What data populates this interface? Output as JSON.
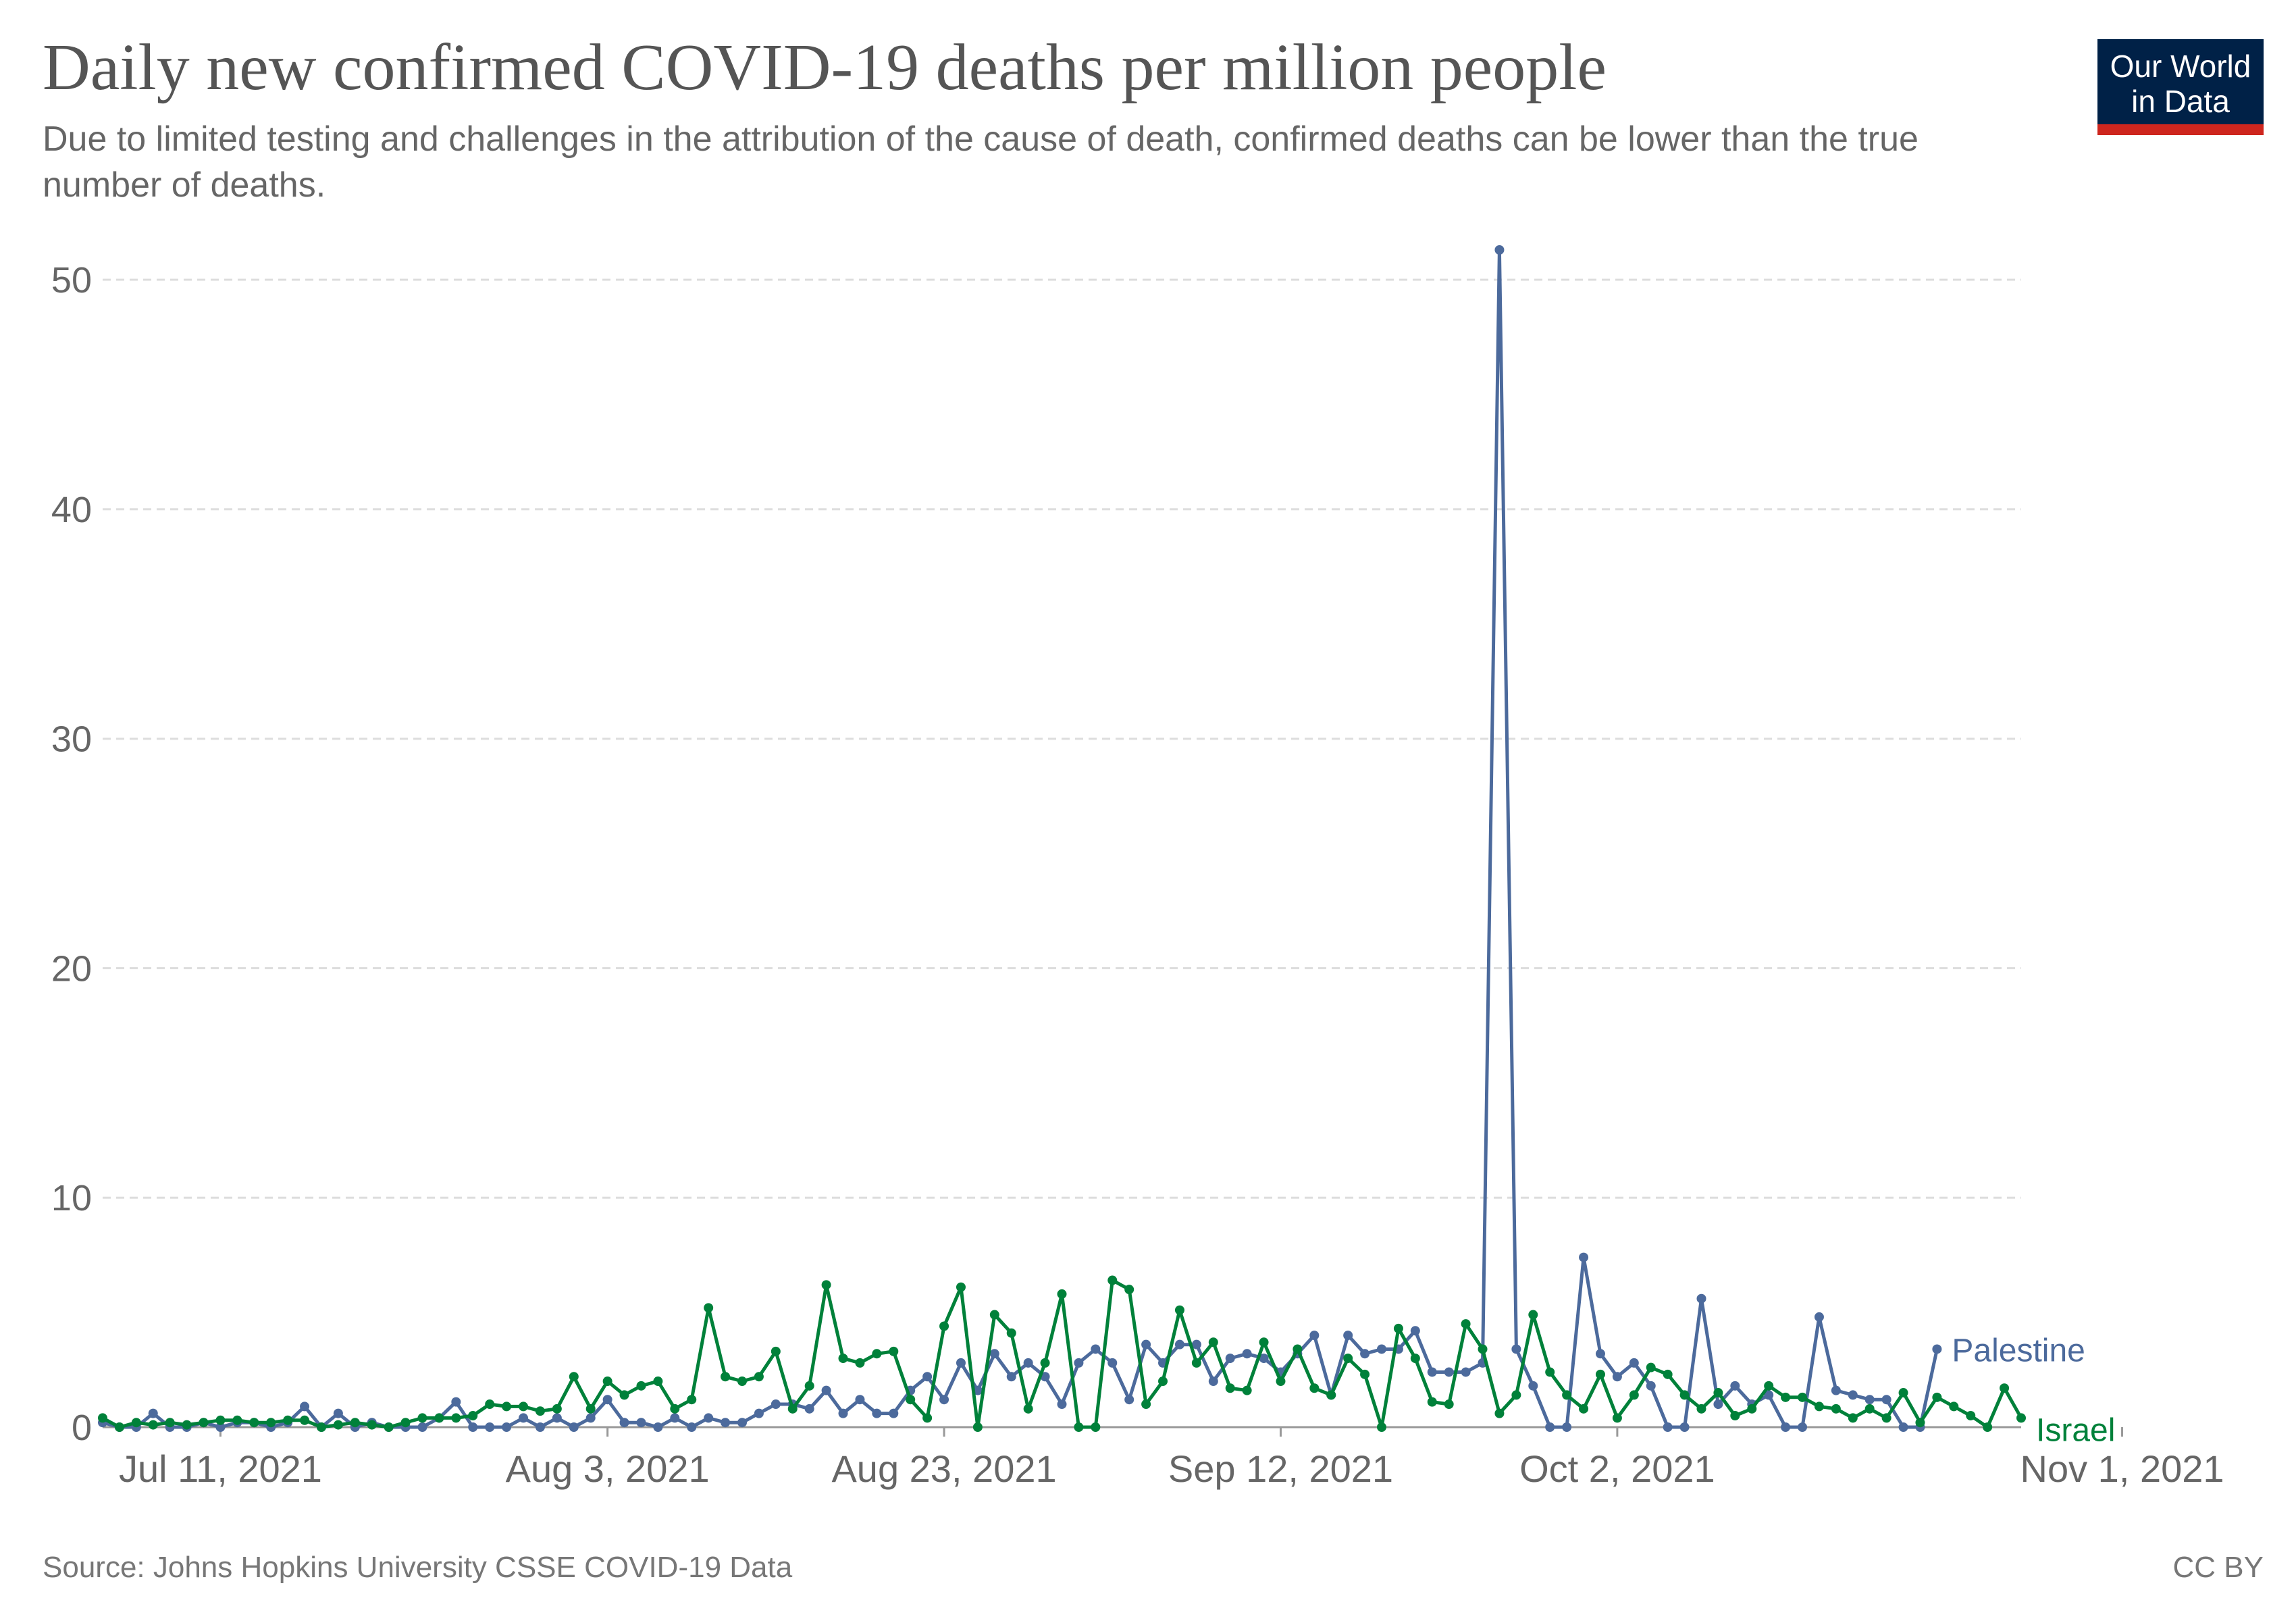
{
  "header": {
    "title": "Daily new confirmed COVID-19 deaths per million people",
    "subtitle": "Due to limited testing and challenges in the attribution of the cause of death, confirmed deaths can be lower than the true number of deaths.",
    "logo_line1": "Our World",
    "logo_line2": "in Data"
  },
  "footer": {
    "source": "Source: Johns Hopkins University CSSE COVID-19 Data",
    "license": "CC BY"
  },
  "colors": {
    "palestine": "#4c6a9c",
    "israel": "#00813a",
    "grid": "#dddddd",
    "axis_text": "#666666"
  },
  "chart_data": {
    "type": "line",
    "title": "Daily new confirmed COVID-19 deaths per million people",
    "xlabel": "",
    "ylabel": "",
    "ylim": [
      0,
      51.3
    ],
    "yticks": [
      0,
      10,
      20,
      30,
      40,
      50
    ],
    "x_start": "2021-07-04",
    "x_end": "2021-11-06",
    "xticks": [
      {
        "label": "Jul 11, 2021",
        "index": 7
      },
      {
        "label": "Aug 3, 2021",
        "index": 30
      },
      {
        "label": "Aug 23, 2021",
        "index": 50
      },
      {
        "label": "Sep 12, 2021",
        "index": 70
      },
      {
        "label": "Oct 2, 2021",
        "index": 90
      },
      {
        "label": "Nov 1, 2021",
        "index": 120
      }
    ],
    "grid": true,
    "legend": "right end labels",
    "series": [
      {
        "name": "Palestine",
        "label": "Palestine",
        "color": "#4c6a9c",
        "values": [
          0.2,
          0,
          0,
          0.6,
          0,
          0,
          0.2,
          0,
          0.2,
          0.2,
          0,
          0.2,
          0.9,
          0,
          0.6,
          0,
          0.2,
          0,
          0,
          0,
          0.4,
          1.1,
          0,
          0,
          0,
          0.4,
          0,
          0.4,
          0,
          0.4,
          1.2,
          0.2,
          0.2,
          0,
          0.4,
          0,
          0.4,
          0.2,
          0.2,
          0.6,
          1,
          1,
          0.8,
          1.6,
          0.6,
          1.2,
          0.6,
          0.6,
          1.6,
          2.2,
          1.2,
          2.8,
          1.6,
          3.2,
          2.2,
          2.8,
          2.2,
          1,
          2.8,
          3.4,
          2.8,
          1.2,
          3.6,
          2.8,
          3.6,
          3.6,
          2,
          3,
          3.2,
          3,
          2.4,
          3.2,
          4,
          1.4,
          4,
          3.2,
          3.4,
          3.4,
          4.2,
          2.4,
          2.4,
          2.4,
          2.8,
          51.3,
          3.4,
          1.8,
          0,
          0,
          7.4,
          3.2,
          2.2,
          2.8,
          1.8,
          0,
          0,
          5.6,
          1,
          1.8,
          1,
          1.4,
          0,
          0,
          4.8,
          1.6,
          1.4,
          1.2,
          1.2,
          0,
          0,
          3.4
        ]
      },
      {
        "name": "Israel",
        "label": "Israel",
        "color": "#00813a",
        "values": [
          0.4,
          0,
          0.2,
          0.1,
          0.2,
          0.1,
          0.2,
          0.3,
          0.3,
          0.2,
          0.2,
          0.3,
          0.3,
          0,
          0.1,
          0.2,
          0.1,
          0,
          0.2,
          0.4,
          0.4,
          0.4,
          0.5,
          1,
          0.9,
          0.9,
          0.7,
          0.8,
          2.2,
          0.8,
          2,
          1.4,
          1.8,
          2,
          0.8,
          1.2,
          5.2,
          2.2,
          2,
          2.2,
          3.3,
          0.8,
          1.8,
          6.2,
          3,
          2.8,
          3.2,
          3.3,
          1.2,
          0.4,
          4.4,
          6.1,
          0,
          4.9,
          4.1,
          0.8,
          2.8,
          5.8,
          0,
          0,
          6.4,
          6,
          1,
          2,
          5.1,
          2.8,
          3.7,
          1.7,
          1.6,
          3.7,
          2,
          3.4,
          1.7,
          1.4,
          3,
          2.3,
          0,
          4.3,
          3,
          1.1,
          1,
          4.5,
          3.4,
          0.6,
          1.4,
          4.9,
          2.4,
          1.4,
          0.8,
          2.3,
          0.4,
          1.4,
          2.6,
          2.3,
          1.4,
          0.8,
          1.5,
          0.5,
          0.8,
          1.8,
          1.3,
          1.3,
          0.9,
          0.8,
          0.4,
          0.8,
          0.4,
          1.5,
          0.2,
          1.3,
          0.9,
          0.5,
          0,
          1.7,
          0.4
        ]
      }
    ]
  }
}
